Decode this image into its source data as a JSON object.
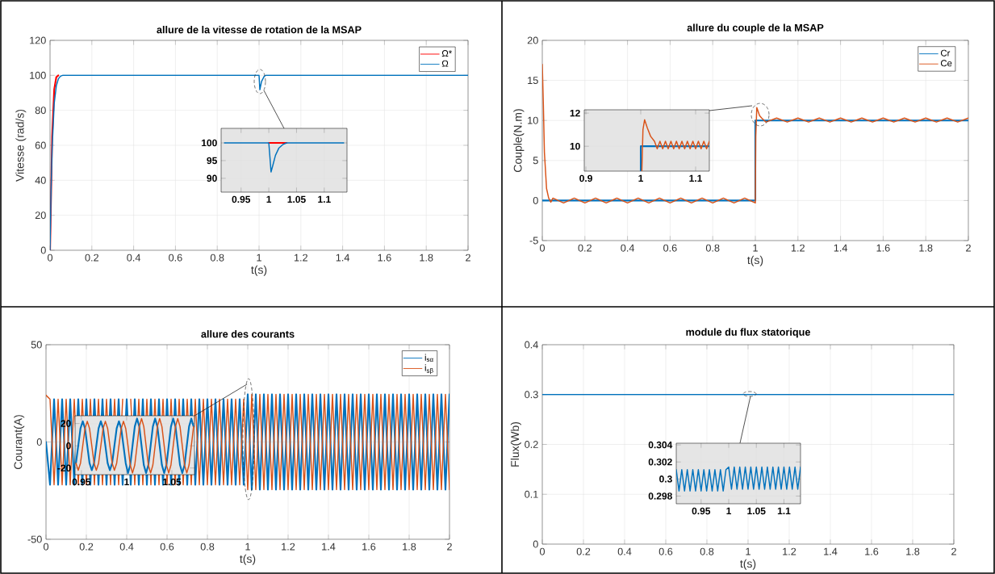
{
  "chart_data": [
    {
      "type": "line",
      "title": "allure de la vitesse de rotation de la MSAP",
      "xlabel": "t(s)",
      "ylabel": "Vitesse (rad/s)",
      "xlim": [
        0,
        2
      ],
      "ylim": [
        0,
        120
      ],
      "xticks": [
        0,
        0.2,
        0.4,
        0.6,
        0.8,
        1,
        1.2,
        1.4,
        1.6,
        1.8,
        2
      ],
      "yticks": [
        0,
        20,
        40,
        60,
        80,
        100,
        120
      ],
      "grid": true,
      "legend": "top right",
      "series": [
        {
          "name": "Ω*",
          "color": "#ff0000",
          "x": [
            0,
            0.01,
            0.02,
            0.03,
            0.04
          ],
          "values": [
            0,
            65,
            92,
            99,
            100
          ]
        },
        {
          "name": "Ω",
          "color": "#0072bd",
          "x": [
            0,
            0.005,
            0.01,
            0.02,
            0.03,
            0.04,
            0.05,
            0.06,
            1.0,
            1.004,
            1.012,
            1.025,
            1.032,
            2
          ],
          "values": [
            0,
            35,
            58,
            84,
            94,
            98,
            99.5,
            100,
            100,
            91.8,
            96.5,
            99.5,
            100,
            100
          ]
        }
      ]
    },
    {
      "type": "line",
      "xlim": [
        0.914,
        1.141
      ],
      "ylim": [
        86.1,
        104.1
      ],
      "xticks": [
        0.95,
        1,
        1.05,
        1.1
      ],
      "yticks": [
        90,
        95,
        100
      ],
      "grid": true,
      "series": [
        {
          "color": "#ff0000",
          "x": [
            1.0,
            1.032
          ],
          "values": [
            100,
            100
          ]
        },
        {
          "color": "#0072bd",
          "x": [
            0.92,
            1.0,
            1.002,
            1.004,
            1.007,
            1.012,
            1.018,
            1.025,
            1.032,
            1.135
          ],
          "values": [
            100,
            100,
            96,
            91.8,
            93.5,
            96.5,
            98.5,
            99.5,
            100,
            100
          ]
        }
      ]
    },
    {
      "type": "line",
      "title": "allure du couple de la MSAP",
      "xlabel": "t(s)",
      "ylabel": "Couple(N.m)",
      "xlim": [
        0,
        2
      ],
      "ylim": [
        -5,
        20
      ],
      "xticks": [
        0,
        0.2,
        0.4,
        0.6,
        0.8,
        1,
        1.2,
        1.4,
        1.6,
        1.8,
        2
      ],
      "yticks": [
        -5,
        0,
        5,
        10,
        15,
        20
      ],
      "grid": true,
      "legend": "top right",
      "series": [
        {
          "name": "Cr",
          "color": "#0072bd",
          "x": [
            0,
            1,
            1,
            2
          ],
          "values": [
            0,
            0,
            10,
            10
          ]
        },
        {
          "name": "Ce",
          "color": "#d95319",
          "x": [
            0,
            0.005,
            0.01,
            0.02,
            0.03,
            0.04,
            0.05,
            0.1,
            0.15,
            0.2,
            0.25,
            0.3,
            0.35,
            0.4,
            0.45,
            0.5,
            0.55,
            0.6,
            0.65,
            0.7,
            0.75,
            0.8,
            0.85,
            0.9,
            0.95,
            1.0,
            1.002,
            1.007,
            1.02,
            1.03,
            1.05,
            1.1,
            1.15,
            1.2,
            1.25,
            1.3,
            1.35,
            1.4,
            1.45,
            1.5,
            1.55,
            1.6,
            1.65,
            1.7,
            1.75,
            1.8,
            1.85,
            1.9,
            1.95,
            2
          ],
          "values": [
            17,
            12,
            6,
            1.5,
            0.3,
            -0.2,
            0.3,
            -0.3,
            0.3,
            -0.3,
            0.3,
            -0.3,
            0.3,
            -0.3,
            0.3,
            -0.3,
            0.3,
            -0.3,
            0.3,
            -0.3,
            0.3,
            -0.3,
            0.3,
            -0.3,
            0.3,
            -0.3,
            8,
            11.6,
            10.6,
            10.3,
            9.8,
            10.3,
            9.8,
            10.3,
            9.8,
            10.3,
            9.8,
            10.3,
            9.8,
            10.3,
            9.8,
            10.3,
            9.8,
            10.3,
            9.8,
            10.3,
            9.8,
            10.3,
            9.8,
            10.3
          ]
        }
      ]
    },
    {
      "type": "line",
      "xlim": [
        0.897,
        1.125
      ],
      "ylim": [
        8.5,
        12.2
      ],
      "xticks": [
        0.9,
        1,
        1.1
      ],
      "yticks": [
        10,
        12
      ],
      "grid": true,
      "series": [
        {
          "color": "#0072bd",
          "x": [
            1,
            1,
            1.125
          ],
          "values": [
            8.5,
            10,
            10
          ]
        },
        {
          "color": "#d95319",
          "x": [
            1.002,
            1.004,
            1.007,
            1.012,
            1.018,
            1.025,
            1.03,
            1.035,
            1.04,
            1.045,
            1.05,
            1.055,
            1.06,
            1.065,
            1.07,
            1.075,
            1.08,
            1.085,
            1.09,
            1.095,
            1.1,
            1.105,
            1.11,
            1.115,
            1.12,
            1.125
          ],
          "values": [
            8.5,
            11,
            11.6,
            11.1,
            10.6,
            10.3,
            9.85,
            10.3,
            9.85,
            10.3,
            9.85,
            10.3,
            9.85,
            10.3,
            9.85,
            10.3,
            9.85,
            10.3,
            9.85,
            10.3,
            9.85,
            10.3,
            9.85,
            10.3,
            9.85,
            10.3
          ]
        }
      ]
    },
    {
      "type": "line",
      "title": "allure des courants",
      "xlabel": "t(s)",
      "ylabel": "Courant(A)",
      "xlim": [
        0,
        2
      ],
      "ylim": [
        -50,
        50
      ],
      "xticks": [
        0,
        0.2,
        0.4,
        0.6,
        0.8,
        1,
        1.2,
        1.4,
        1.6,
        1.8,
        2
      ],
      "yticks": [
        -50,
        0,
        50
      ],
      "grid": true,
      "legend": "top right",
      "x": [
        0,
        0.02,
        0.04,
        0.06,
        0.08,
        0.1,
        0.12,
        0.14,
        0.16,
        0.18,
        0.2,
        0.22,
        0.24,
        0.26,
        0.28,
        0.3,
        0.32,
        0.34,
        0.36,
        0.38,
        0.4,
        0.42,
        0.44,
        0.46,
        0.48,
        0.5,
        0.52,
        0.54,
        0.56,
        0.58,
        0.6,
        0.62,
        0.64,
        0.66,
        0.68,
        0.7,
        0.72,
        0.74,
        0.76,
        0.78,
        0.8,
        0.82,
        0.84,
        0.86,
        0.88,
        0.9,
        0.92,
        0.94,
        0.96,
        0.98,
        1,
        1.02,
        1.04,
        1.06,
        1.08,
        1.1,
        1.12,
        1.14,
        1.16,
        1.18,
        1.2,
        1.22,
        1.24,
        1.26,
        1.28,
        1.3,
        1.32,
        1.34,
        1.36,
        1.38,
        1.4,
        1.42,
        1.44,
        1.46,
        1.48,
        1.5,
        1.52,
        1.54,
        1.56,
        1.58,
        1.6,
        1.62,
        1.64,
        1.66,
        1.68,
        1.7,
        1.72,
        1.74,
        1.76,
        1.78,
        1.8,
        1.82,
        1.84,
        1.86,
        1.88,
        1.9,
        1.92,
        1.94,
        1.96,
        1.98,
        2
      ],
      "series": [
        {
          "name": "i$_{sα}$",
          "color": "#0072bd",
          "values": [
            0,
            -22,
            22,
            -22,
            22,
            -22,
            22,
            -22,
            22,
            -22,
            22,
            -22,
            22,
            -22,
            22,
            -22,
            22,
            -22,
            22,
            -22,
            22,
            -22,
            22,
            -22,
            22,
            -22,
            22,
            -22,
            22,
            -22,
            22,
            -22,
            22,
            -22,
            22,
            -22,
            22,
            -22,
            22,
            -22,
            22,
            -22,
            22,
            -22,
            22,
            -22,
            22,
            -22,
            22,
            -22,
            24.5,
            -24.5,
            24.5,
            -24.5,
            24.5,
            -24.5,
            24.5,
            -24.5,
            24.5,
            -24.5,
            24.5,
            -24.5,
            24.5,
            -24.5,
            24.5,
            -24.5,
            24.5,
            -24.5,
            24.5,
            -24.5,
            24.5,
            -24.5,
            24.5,
            -24.5,
            24.5,
            -24.5,
            24.5,
            -24.5,
            24.5,
            -24.5,
            24.5,
            -24.5,
            24.5,
            -24.5,
            24.5,
            -24.5,
            24.5,
            -24.5,
            24.5,
            -24.5,
            24.5,
            -24.5,
            24.5,
            -24.5,
            24.5,
            -24.5,
            24.5,
            -24.5,
            24.5,
            -24.5,
            24.5
          ]
        },
        {
          "name": "i$_{sβ}$",
          "color": "#d95319",
          "values": [
            24,
            22,
            -22,
            22,
            -22,
            22,
            -22,
            22,
            -22,
            22,
            -22,
            22,
            -22,
            22,
            -22,
            22,
            -22,
            22,
            -22,
            22,
            null,
            22,
            -22,
            22,
            -22,
            22,
            -22,
            22,
            -22,
            22,
            -22,
            22,
            -22,
            22,
            -22,
            22,
            -22,
            22,
            -22,
            22,
            -22,
            22,
            -22,
            22,
            -22,
            22,
            -22,
            22,
            -22,
            22,
            -24.5,
            24.5,
            -24.5,
            24.5,
            -24.5,
            24.5,
            -24.5,
            24.5,
            -24.5,
            24.5,
            -24.5,
            24.5,
            -24.5,
            24.5,
            -24.5,
            24.5,
            -24.5,
            24.5,
            -24.5,
            24.5,
            -24.5,
            24.5,
            -24.5,
            24.5,
            -24.5,
            24.5,
            -24.5,
            24.5,
            -24.5,
            24.5,
            -24.5,
            24.5,
            -24.5,
            24.5,
            -24.5,
            24.5,
            -24.5,
            24.5,
            -24.5,
            24.5,
            -24.5,
            24.5,
            -24.5,
            24.5,
            -24.5,
            24.5,
            -24.5,
            24.5,
            -24.5,
            24.5,
            -24.5
          ]
        }
      ]
    },
    {
      "type": "line",
      "xlim": [
        0.943,
        1.075
      ],
      "ylim": [
        -26,
        27
      ],
      "xticks": [
        0.95,
        1,
        1.05
      ],
      "yticks": [
        -20,
        0,
        20
      ],
      "grid": true,
      "x": [
        0.944,
        0.9465,
        0.949,
        0.9515,
        0.954,
        0.9565,
        0.959,
        0.9615,
        0.964,
        0.9665,
        0.969,
        0.9715,
        0.974,
        0.9765,
        0.979,
        0.9815,
        0.984,
        0.9865,
        0.989,
        0.9915,
        0.994,
        0.9965,
        0.999,
        1.0015,
        1.004,
        1.0065,
        1.009,
        1.0115,
        1.014,
        1.0165,
        1.019,
        1.0215,
        1.024,
        1.0265,
        1.029,
        1.0315,
        1.034,
        1.0365,
        1.039,
        1.0415,
        1.044,
        1.0465,
        1.049,
        1.0515,
        1.054,
        1.0565,
        1.059,
        1.0615,
        1.064,
        1.0665,
        1.069,
        1.0715,
        1.074
      ],
      "series": [
        {
          "color": "#0072bd",
          "values": [
            -15.6,
            0,
            15.6,
            22,
            15.6,
            0,
            -15.6,
            -22,
            -15.6,
            0,
            15.6,
            22,
            15.6,
            0,
            -15.6,
            -22,
            -15.6,
            0,
            15.6,
            22,
            15.6,
            0,
            -15.6,
            -24.5,
            -17.3,
            0,
            17.3,
            24.5,
            17.3,
            0,
            -17.3,
            -24.5,
            -17.3,
            0,
            17.3,
            24.5,
            17.3,
            0,
            -17.3,
            -24.5,
            -17.3,
            0,
            17.3,
            24.5,
            17.3,
            0,
            -17.3,
            -24.5,
            -17.3,
            0,
            17.3,
            24.5,
            17.3
          ]
        },
        {
          "color": "#d95319",
          "values": [
            -15.6,
            -22,
            -15.6,
            0,
            15.6,
            22,
            15.6,
            0,
            -15.6,
            -22,
            -15.6,
            0,
            15.6,
            22,
            15.6,
            0,
            -15.6,
            -22,
            -15.6,
            0,
            15.6,
            22,
            15.6,
            0,
            -17.3,
            -24.5,
            -17.3,
            0,
            17.3,
            24.5,
            17.3,
            0,
            -17.3,
            -24.5,
            -17.3,
            0,
            17.3,
            24.5,
            17.3,
            0,
            -17.3,
            -24.5,
            -17.3,
            0,
            17.3,
            24.5,
            17.3,
            0,
            -17.3,
            -24.5,
            -17.3,
            0,
            17.3
          ]
        }
      ]
    },
    {
      "type": "line",
      "title": "module du flux statorique",
      "xlabel": "t(s)",
      "ylabel": "Flux(Wb)",
      "xlim": [
        0,
        2
      ],
      "ylim": [
        0,
        0.4
      ],
      "xticks": [
        0,
        0.2,
        0.4,
        0.6,
        0.8,
        1,
        1.2,
        1.4,
        1.6,
        1.8,
        2
      ],
      "yticks": [
        0,
        0.1,
        0.2,
        0.3,
        0.4
      ],
      "grid": true,
      "series": [
        {
          "color": "#0072bd",
          "x": [
            0,
            2
          ],
          "values": [
            0.3,
            0.3
          ]
        }
      ]
    },
    {
      "type": "line",
      "xlim": [
        0.905,
        1.13
      ],
      "ylim": [
        0.2971,
        0.3042
      ],
      "xticks": [
        0.95,
        1,
        1.05,
        1.1
      ],
      "yticks": [
        0.298,
        0.3,
        0.302,
        0.304
      ],
      "grid": true,
      "series": [
        {
          "color": "#0072bd",
          "x": [
            0.905,
            0.91,
            0.915,
            0.92,
            0.925,
            0.93,
            0.935,
            0.94,
            0.945,
            0.95,
            0.955,
            0.96,
            0.965,
            0.97,
            0.975,
            0.98,
            0.985,
            0.99,
            0.995,
            1.0,
            1.005,
            1.01,
            1.015,
            1.02,
            1.025,
            1.03,
            1.035,
            1.04,
            1.045,
            1.05,
            1.055,
            1.06,
            1.065,
            1.07,
            1.075,
            1.08,
            1.085,
            1.09,
            1.095,
            1.1,
            1.105,
            1.11,
            1.115,
            1.12,
            1.125,
            1.13
          ],
          "values": [
            0.3011,
            0.2986,
            0.3011,
            0.2986,
            0.3011,
            0.2986,
            0.3011,
            0.2986,
            0.3011,
            0.2986,
            0.3011,
            0.2986,
            0.3011,
            0.2986,
            0.3011,
            0.2986,
            0.3011,
            0.2986,
            0.3011,
            0.3014,
            0.2988,
            0.3014,
            0.2988,
            0.3014,
            0.2988,
            0.3014,
            0.2988,
            0.3014,
            0.2988,
            0.3014,
            0.2988,
            0.3014,
            0.2988,
            0.3014,
            0.2988,
            0.3014,
            0.2988,
            0.3014,
            0.2988,
            0.3014,
            0.2988,
            0.3014,
            0.2988,
            0.3014,
            0.2988,
            0.3014
          ]
        }
      ]
    }
  ]
}
